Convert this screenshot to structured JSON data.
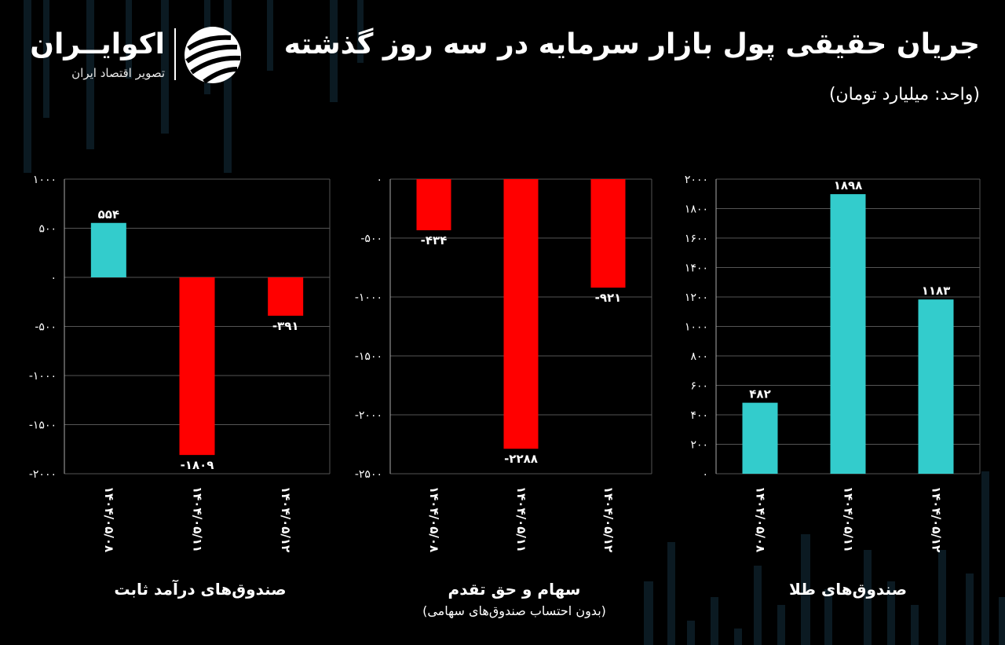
{
  "header": {
    "title": "جریان حقیقی پول بازار سرمایه در سه روز گذشته",
    "subtitle": "(واحد: میلیارد تومان)"
  },
  "logo": {
    "name": "اکوایــران",
    "tagline": "تصویر اقتصاد ایران"
  },
  "colors": {
    "positive": "#33CCCC",
    "negative": "#FF0000",
    "grid": "#555555",
    "axis": "#aaaaaa",
    "text": "#ffffff",
    "background": "#000000"
  },
  "chart_data": [
    {
      "type": "bar",
      "caption": "صندوق‌های درآمد ثابت",
      "caption_sub": "",
      "categories": [
        "۱۴۰۴/۰۵/۰۸",
        "۱۴۰۴/۰۵/۱۱",
        "۱۴۰۴/۰۵/۱۲"
      ],
      "values": [
        554,
        -1809,
        -391
      ],
      "value_labels": [
        "۵۵۴",
        "-۱۸۰۹",
        "-۳۹۱"
      ],
      "ylim": [
        -2000,
        1000
      ],
      "yticks": [
        1000,
        500,
        0,
        -500,
        -1000,
        -1500,
        -2000
      ],
      "ytick_labels": [
        "۱۰۰۰",
        "۵۰۰",
        "۰",
        "-۵۰۰",
        "-۱۰۰۰",
        "-۱۵۰۰",
        "-۲۰۰۰"
      ],
      "grid": true
    },
    {
      "type": "bar",
      "caption": "سهام و حق تقدم",
      "caption_sub": "(بدون احتساب صندوق‌های سهامی)",
      "categories": [
        "۱۴۰۴/۰۵/۰۸",
        "۱۴۰۴/۰۵/۱۱",
        "۱۴۰۴/۰۵/۱۲"
      ],
      "values": [
        -434,
        -2288,
        -921
      ],
      "value_labels": [
        "-۴۳۴",
        "-۲۲۸۸",
        "-۹۲۱"
      ],
      "ylim": [
        -2500,
        0
      ],
      "yticks": [
        0,
        -500,
        -1000,
        -1500,
        -2000,
        -2500
      ],
      "ytick_labels": [
        "۰",
        "-۵۰۰",
        "-۱۰۰۰",
        "-۱۵۰۰",
        "-۲۰۰۰",
        "-۲۵۰۰"
      ],
      "grid": true
    },
    {
      "type": "bar",
      "caption": "صندوق‌های طلا",
      "caption_sub": "",
      "categories": [
        "۱۴۰۴/۰۵/۰۸",
        "۱۴۰۴/۰۵/۱۱",
        "۱۴۰۴/۰۵/۱۲"
      ],
      "values": [
        482,
        1898,
        1183
      ],
      "value_labels": [
        "۴۸۲",
        "۱۸۹۸",
        "۱۱۸۳"
      ],
      "ylim": [
        0,
        2000
      ],
      "yticks": [
        2000,
        1800,
        1600,
        1400,
        1200,
        1000,
        800,
        600,
        400,
        200,
        0
      ],
      "ytick_labels": [
        "۲۰۰۰",
        "۱۸۰۰",
        "۱۶۰۰",
        "۱۴۰۰",
        "۱۲۰۰",
        "۱۰۰۰",
        "۸۰۰",
        "۶۰۰",
        "۴۰۰",
        "۲۰۰",
        "۰"
      ],
      "grid": true
    }
  ]
}
